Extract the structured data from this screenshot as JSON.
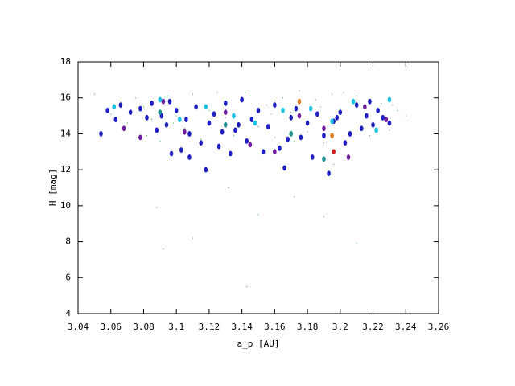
{
  "chart_data": {
    "type": "scatter",
    "xlabel": "a_p [AU]",
    "ylabel": "H [mag]",
    "xlim": [
      3.04,
      3.26
    ],
    "xticks": [
      3.04,
      3.06,
      3.08,
      3.1,
      3.12,
      3.14,
      3.16,
      3.18,
      3.2,
      3.22,
      3.24,
      3.26
    ],
    "ylim": [
      4,
      18
    ],
    "yticks": [
      4,
      6,
      8,
      10,
      12,
      14,
      16,
      18
    ],
    "series": [
      {
        "color": "#20b020",
        "marker": "dot",
        "x": [
          3.05,
          3.06,
          3.07,
          3.075,
          3.08,
          3.085,
          3.09,
          3.095,
          3.1,
          3.105,
          3.11,
          3.115,
          3.12,
          3.125,
          3.13,
          3.135,
          3.14,
          3.145,
          3.15,
          3.155,
          3.16,
          3.165,
          3.17,
          3.175,
          3.18,
          3.185,
          3.19,
          3.195,
          3.2,
          3.205,
          3.21,
          3.215,
          3.22,
          3.225,
          3.23,
          3.235,
          3.24,
          3.082,
          3.098,
          3.112,
          3.128,
          3.142,
          3.158,
          3.172,
          3.188,
          3.202,
          3.218,
          3.232,
          3.132,
          3.172,
          3.19,
          3.196,
          3.11,
          3.092,
          3.143,
          3.21,
          3.088,
          3.15
        ],
        "values": [
          16.2,
          15.1,
          14.6,
          16.0,
          15.5,
          14.8,
          13.6,
          16.1,
          15.0,
          14.3,
          16.2,
          13.7,
          15.3,
          16.3,
          14.9,
          13.9,
          15.8,
          16.1,
          14.4,
          15.6,
          13.8,
          16.0,
          15.2,
          16.4,
          14.1,
          15.9,
          13.5,
          16.2,
          15.4,
          14.0,
          16.1,
          15.0,
          14.5,
          15.7,
          14.2,
          15.3,
          15.0,
          13.9,
          14.6,
          15.6,
          14.0,
          16.3,
          15.1,
          13.6,
          15.5,
          16.3,
          13.9,
          15.6,
          11.0,
          10.5,
          9.4,
          12.3,
          8.2,
          7.6,
          5.5,
          7.9,
          9.9,
          9.5
        ]
      },
      {
        "color": "#2020c0",
        "marker": "diamond",
        "x": [
          3.054,
          3.058,
          3.063,
          3.066,
          3.072,
          3.078,
          3.082,
          3.085,
          3.088,
          3.091,
          3.094,
          3.097,
          3.1,
          3.103,
          3.106,
          3.108,
          3.112,
          3.115,
          3.118,
          3.12,
          3.123,
          3.126,
          3.13,
          3.133,
          3.136,
          3.14,
          3.143,
          3.146,
          3.15,
          3.153,
          3.156,
          3.16,
          3.163,
          3.166,
          3.17,
          3.173,
          3.176,
          3.18,
          3.183,
          3.186,
          3.19,
          3.193,
          3.196,
          3.2,
          3.203,
          3.206,
          3.21,
          3.213,
          3.216,
          3.22,
          3.223,
          3.226,
          3.23,
          3.096,
          3.108,
          3.138,
          3.168,
          3.198,
          3.218,
          3.128
        ],
        "values": [
          14.0,
          15.3,
          14.8,
          15.6,
          15.2,
          15.4,
          14.9,
          15.7,
          14.2,
          15.0,
          14.5,
          12.9,
          15.3,
          13.1,
          14.8,
          12.7,
          15.5,
          13.5,
          12.0,
          14.6,
          15.1,
          13.3,
          15.7,
          12.9,
          14.2,
          15.9,
          13.6,
          14.8,
          15.3,
          13.0,
          14.4,
          15.6,
          13.2,
          12.1,
          14.9,
          15.4,
          13.8,
          14.6,
          12.7,
          15.1,
          13.9,
          11.8,
          14.7,
          15.2,
          13.5,
          14.0,
          15.6,
          14.3,
          15.0,
          14.5,
          15.3,
          14.9,
          14.6,
          15.8,
          14.0,
          14.5,
          13.7,
          14.9,
          15.8,
          14.1
        ]
      },
      {
        "color": "#7020a0",
        "marker": "diamond",
        "x": [
          3.068,
          3.078,
          3.092,
          3.105,
          3.13,
          3.145,
          3.16,
          3.175,
          3.19,
          3.205,
          3.215,
          3.228
        ],
        "values": [
          14.3,
          13.8,
          15.8,
          14.1,
          15.2,
          13.4,
          13.0,
          15.0,
          14.3,
          12.7,
          15.5,
          14.8
        ]
      },
      {
        "color": "#20c0e0",
        "marker": "diamond",
        "x": [
          3.062,
          3.09,
          3.102,
          3.118,
          3.135,
          3.148,
          3.165,
          3.182,
          3.195,
          3.208,
          3.222,
          3.23
        ],
        "values": [
          15.5,
          15.9,
          14.8,
          15.5,
          15.0,
          14.6,
          15.3,
          15.4,
          14.7,
          15.8,
          14.2,
          15.9
        ]
      },
      {
        "color": "#209090",
        "marker": "diamond",
        "x": [
          3.09,
          3.13,
          3.17,
          3.19
        ],
        "values": [
          15.2,
          14.5,
          14.0,
          12.6
        ]
      },
      {
        "color": "#e08020",
        "marker": "diamond",
        "x": [
          3.175,
          3.195
        ],
        "values": [
          15.8,
          13.9
        ]
      },
      {
        "color": "#d02020",
        "marker": "diamond",
        "x": [
          3.196
        ],
        "values": [
          13.0
        ]
      }
    ]
  }
}
